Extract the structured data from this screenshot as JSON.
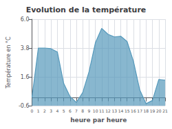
{
  "chart_data": {
    "type": "line",
    "title": "Evolution de la température",
    "xlabel": "heure par heure",
    "ylabel": "Température en °C",
    "x": [
      0,
      1,
      2,
      3,
      4,
      5,
      6,
      7,
      8,
      9,
      10,
      11,
      12,
      13,
      14,
      15,
      16,
      17,
      18,
      19,
      20,
      21
    ],
    "values": [
      0.05,
      3.8,
      3.8,
      3.75,
      3.5,
      1.1,
      0.1,
      -0.35,
      0.4,
      2.0,
      4.2,
      5.3,
      4.85,
      4.65,
      4.7,
      4.3,
      2.8,
      0.6,
      -0.45,
      -0.2,
      1.4,
      1.35
    ],
    "color": "#5599bb",
    "xlim": [
      0,
      21
    ],
    "xticks": [
      0,
      1,
      2,
      3,
      4,
      5,
      6,
      7,
      8,
      9,
      10,
      11,
      12,
      13,
      14,
      15,
      16,
      17,
      18,
      19,
      20,
      21
    ],
    "ylim": [
      -0.6,
      6.0
    ],
    "yticks": [
      -0.6,
      1.6,
      3.8,
      {
        "value": 6.0,
        "label": "6.0"
      }
    ],
    "grid": true
  }
}
